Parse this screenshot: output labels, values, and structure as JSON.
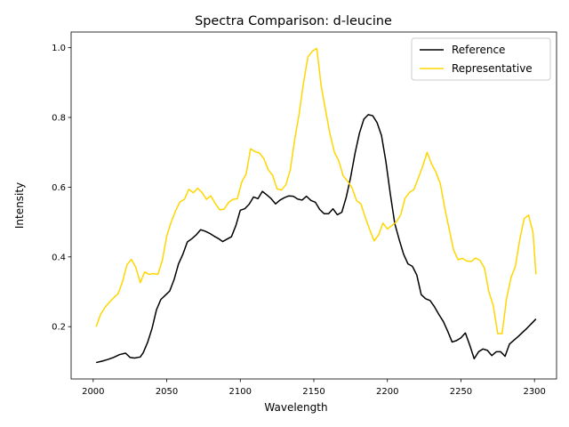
{
  "chart_data": {
    "type": "line",
    "title": "Spectra Comparison: d-leucine",
    "xlabel": "Wavelength",
    "ylabel": "Intensity",
    "xlim": [
      1985,
      2315
    ],
    "ylim": [
      0.05,
      1.045
    ],
    "xticks": [
      2000,
      2050,
      2100,
      2150,
      2200,
      2250,
      2300
    ],
    "yticks": [
      0.2,
      0.4,
      0.6,
      0.8,
      1.0
    ],
    "xtick_labels": [
      "2000",
      "2050",
      "2100",
      "2150",
      "2200",
      "2250",
      "2300"
    ],
    "ytick_labels": [
      "0.2",
      "0.4",
      "0.6",
      "0.8",
      "1.0"
    ],
    "legend_position": "top-right",
    "series": [
      {
        "name": "Reference",
        "color": "#000000",
        "x": [
          2002,
          2006,
          2010,
          2014,
          2018,
          2022,
          2025,
          2028,
          2032,
          2034,
          2037,
          2040,
          2043,
          2046,
          2049,
          2052,
          2055,
          2058,
          2061,
          2064,
          2067,
          2070,
          2073,
          2076,
          2079,
          2082,
          2085,
          2088,
          2091,
          2094,
          2097,
          2100,
          2103,
          2106,
          2109,
          2112,
          2115,
          2118,
          2121,
          2124,
          2127,
          2130,
          2133,
          2136,
          2139,
          2142,
          2145,
          2148,
          2151,
          2154,
          2157,
          2160,
          2163,
          2166,
          2169,
          2172,
          2175,
          2178,
          2181,
          2184,
          2187,
          2190,
          2193,
          2196,
          2199,
          2202,
          2205,
          2208,
          2211,
          2214,
          2217,
          2220,
          2223,
          2226,
          2229,
          2232,
          2235,
          2238,
          2241,
          2244,
          2247,
          2250,
          2253,
          2256,
          2259,
          2262,
          2265,
          2268,
          2271,
          2274,
          2277,
          2280,
          2283,
          2286,
          2289,
          2292,
          2295,
          2298,
          2301
        ],
        "values": [
          0.097,
          0.101,
          0.106,
          0.112,
          0.12,
          0.124,
          0.112,
          0.11,
          0.113,
          0.125,
          0.155,
          0.195,
          0.248,
          0.278,
          0.29,
          0.302,
          0.335,
          0.38,
          0.408,
          0.443,
          0.452,
          0.463,
          0.478,
          0.474,
          0.468,
          0.46,
          0.453,
          0.444,
          0.451,
          0.458,
          0.49,
          0.534,
          0.538,
          0.551,
          0.572,
          0.567,
          0.588,
          0.578,
          0.567,
          0.552,
          0.563,
          0.57,
          0.575,
          0.574,
          0.566,
          0.563,
          0.574,
          0.562,
          0.557,
          0.536,
          0.524,
          0.524,
          0.538,
          0.521,
          0.528,
          0.571,
          0.628,
          0.697,
          0.755,
          0.795,
          0.808,
          0.805,
          0.785,
          0.748,
          0.673,
          0.58,
          0.496,
          0.45,
          0.408,
          0.38,
          0.373,
          0.348,
          0.292,
          0.28,
          0.275,
          0.257,
          0.235,
          0.215,
          0.187,
          0.156,
          0.16,
          0.168,
          0.182,
          0.147,
          0.108,
          0.128,
          0.136,
          0.132,
          0.117,
          0.128,
          0.128,
          0.115,
          0.15,
          0.161,
          0.172,
          0.184,
          0.196,
          0.209,
          0.222
        ]
      },
      {
        "name": "Representative",
        "color": "#ffd600",
        "x": [
          2002,
          2005,
          2008,
          2011,
          2014,
          2017,
          2020,
          2023,
          2026,
          2029,
          2032,
          2035,
          2038,
          2041,
          2044,
          2047,
          2050,
          2053,
          2056,
          2059,
          2062,
          2065,
          2068,
          2071,
          2074,
          2077,
          2080,
          2083,
          2086,
          2089,
          2092,
          2095,
          2098,
          2101,
          2104,
          2107,
          2110,
          2113,
          2116,
          2119,
          2122,
          2125,
          2128,
          2131,
          2134,
          2137,
          2140,
          2143,
          2146,
          2149,
          2152,
          2155,
          2158,
          2161,
          2164,
          2167,
          2170,
          2173,
          2176,
          2179,
          2182,
          2185,
          2188,
          2191,
          2194,
          2197,
          2200,
          2203,
          2206,
          2209,
          2212,
          2215,
          2218,
          2221,
          2224,
          2227,
          2230,
          2233,
          2236,
          2239,
          2242,
          2245,
          2248,
          2251,
          2254,
          2257,
          2260,
          2263,
          2266,
          2269,
          2272,
          2275,
          2278,
          2281,
          2284,
          2287,
          2290,
          2293,
          2296,
          2299,
          2301
        ],
        "values": [
          0.2,
          0.235,
          0.255,
          0.27,
          0.283,
          0.295,
          0.33,
          0.378,
          0.393,
          0.37,
          0.326,
          0.357,
          0.35,
          0.352,
          0.35,
          0.39,
          0.46,
          0.5,
          0.532,
          0.558,
          0.565,
          0.594,
          0.584,
          0.597,
          0.585,
          0.565,
          0.575,
          0.553,
          0.535,
          0.537,
          0.556,
          0.565,
          0.567,
          0.615,
          0.638,
          0.71,
          0.702,
          0.698,
          0.682,
          0.65,
          0.634,
          0.595,
          0.592,
          0.607,
          0.65,
          0.737,
          0.81,
          0.9,
          0.974,
          0.99,
          0.998,
          0.89,
          0.82,
          0.752,
          0.7,
          0.675,
          0.632,
          0.617,
          0.598,
          0.562,
          0.552,
          0.513,
          0.478,
          0.446,
          0.463,
          0.497,
          0.48,
          0.49,
          0.5,
          0.52,
          0.568,
          0.585,
          0.593,
          0.626,
          0.66,
          0.7,
          0.667,
          0.643,
          0.61,
          0.54,
          0.48,
          0.42,
          0.392,
          0.396,
          0.388,
          0.387,
          0.397,
          0.39,
          0.368,
          0.3,
          0.26,
          0.18,
          0.18,
          0.28,
          0.34,
          0.373,
          0.45,
          0.51,
          0.52,
          0.47,
          0.35
        ]
      }
    ]
  }
}
